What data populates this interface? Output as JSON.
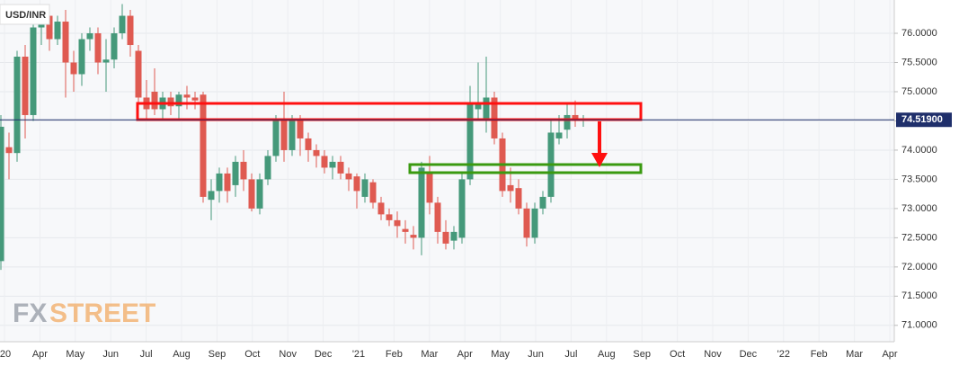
{
  "chart_data": {
    "type": "candlestick",
    "title": "USD/INR",
    "logo": {
      "prefix": "FX",
      "suffix": "STREET"
    },
    "up_color": "#45997a",
    "down_color": "#df5a51",
    "grid": true,
    "open": [
      72.1,
      74.05,
      73.95,
      75.6,
      74.6,
      76.1,
      76.3,
      75.9,
      76.2,
      75.5,
      75.3,
      75.9,
      76.0,
      75.5,
      75.55,
      76.0,
      76.3,
      75.7,
      74.9,
      75.0,
      74.7,
      74.9,
      74.75,
      74.95,
      74.9,
      74.95,
      73.15,
      73.3,
      73.6,
      73.4,
      73.8,
      73.5,
      73.0,
      73.5,
      73.9,
      74.5,
      74.0,
      74.5,
      74.2,
      74.0,
      73.9,
      73.7,
      73.8,
      73.6,
      73.55,
      73.2,
      73.45,
      73.1,
      72.9,
      72.8,
      72.65,
      72.55,
      72.5,
      73.6,
      73.1,
      72.6,
      72.45,
      72.5,
      73.5,
      74.7,
      74.5,
      74.9,
      74.2,
      73.4,
      73.35,
      73.0,
      72.5,
      73.0,
      73.2,
      74.2,
      74.35,
      74.6,
      74.5
    ],
    "high": [
      74.6,
      74.3,
      75.7,
      75.8,
      76.3,
      76.5,
      76.4,
      76.3,
      76.4,
      75.7,
      76.0,
      76.1,
      76.1,
      75.9,
      76.1,
      76.5,
      76.4,
      75.8,
      75.2,
      75.4,
      75.0,
      75.0,
      75.0,
      75.1,
      75.0,
      75.0,
      73.5,
      73.7,
      73.7,
      73.9,
      74.0,
      73.6,
      73.6,
      74.0,
      74.6,
      75.0,
      74.6,
      74.6,
      74.3,
      74.1,
      74.0,
      73.9,
      73.9,
      73.7,
      73.6,
      73.6,
      73.5,
      73.2,
      73.0,
      72.95,
      72.8,
      72.7,
      73.8,
      73.9,
      73.2,
      72.8,
      72.7,
      73.6,
      75.1,
      75.5,
      75.6,
      75.0,
      74.3,
      73.7,
      73.5,
      73.1,
      73.1,
      73.3,
      74.5,
      74.6,
      74.8,
      74.85,
      74.6
    ],
    "low": [
      71.95,
      73.5,
      73.8,
      74.2,
      74.5,
      75.8,
      75.7,
      75.8,
      74.9,
      75.0,
      75.1,
      75.7,
      75.3,
      75.0,
      75.4,
      75.9,
      75.6,
      74.6,
      74.5,
      74.6,
      74.5,
      74.6,
      74.5,
      74.7,
      74.7,
      73.1,
      72.8,
      73.1,
      73.1,
      73.2,
      73.3,
      72.95,
      72.9,
      73.4,
      73.8,
      73.8,
      73.9,
      73.9,
      73.8,
      73.7,
      73.6,
      73.5,
      73.5,
      73.3,
      73.0,
      73.1,
      73.0,
      72.8,
      72.7,
      72.5,
      72.4,
      72.3,
      72.2,
      72.9,
      72.4,
      72.3,
      72.3,
      72.4,
      73.4,
      74.5,
      74.3,
      74.1,
      73.2,
      73.1,
      72.9,
      72.35,
      72.4,
      72.9,
      73.1,
      74.1,
      74.2,
      74.4,
      74.4
    ],
    "close": [
      74.4,
      73.95,
      75.6,
      74.6,
      76.1,
      76.3,
      75.9,
      76.2,
      75.5,
      75.3,
      75.9,
      76.0,
      75.5,
      75.55,
      76.0,
      76.3,
      75.8,
      74.9,
      74.7,
      74.7,
      74.9,
      74.75,
      74.95,
      74.9,
      74.85,
      73.2,
      73.3,
      73.6,
      73.3,
      73.8,
      73.5,
      73.0,
      73.5,
      73.9,
      74.5,
      74.0,
      74.5,
      74.2,
      74.0,
      73.9,
      73.7,
      73.8,
      73.6,
      73.5,
      73.3,
      73.5,
      73.1,
      72.9,
      72.8,
      72.7,
      72.6,
      72.5,
      73.7,
      73.1,
      72.6,
      72.4,
      72.6,
      73.5,
      74.8,
      74.8,
      74.9,
      74.2,
      73.3,
      73.3,
      73.0,
      72.5,
      73.0,
      73.2,
      74.3,
      74.3,
      74.6,
      74.5,
      74.52
    ],
    "xtick_labels": [
      "'20",
      "Apr",
      "May",
      "Jun",
      "Jul",
      "Aug",
      "Sep",
      "Oct",
      "Nov",
      "Dec",
      "'21",
      "Feb",
      "Mar",
      "Apr",
      "May",
      "Jun",
      "Jul",
      "Aug",
      "Sep",
      "Oct",
      "Nov",
      "Dec",
      "'22",
      "Feb",
      "Mar",
      "Apr"
    ],
    "ylim": [
      70.72,
      76.57
    ],
    "yticks": [
      {
        "value": 71,
        "label": "71.0000"
      },
      {
        "value": 71.5,
        "label": "71.5000"
      },
      {
        "value": 72,
        "label": "72.0000"
      },
      {
        "value": 72.5,
        "label": "72.5000"
      },
      {
        "value": 73,
        "label": "73.0000"
      },
      {
        "value": 73.5,
        "label": "73.5000"
      },
      {
        "value": 74,
        "label": "74.0000"
      },
      {
        "value": 74.5,
        "label": "74.5000"
      },
      {
        "value": 75,
        "label": "75.0000"
      },
      {
        "value": 75.5,
        "label": "75.5000"
      },
      {
        "value": 76,
        "label": "76.0000"
      }
    ],
    "last_price": {
      "value": 74.519,
      "label": "74.51900"
    }
  }
}
